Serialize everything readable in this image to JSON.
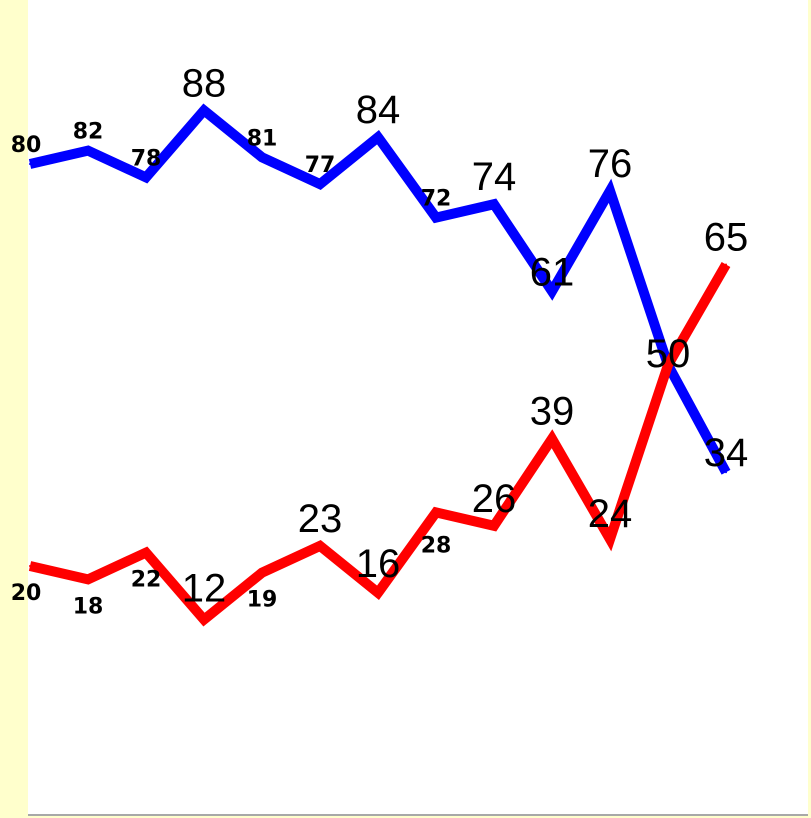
{
  "chart_data": {
    "type": "line",
    "x": [
      1,
      2,
      3,
      4,
      5,
      6,
      7,
      8,
      9,
      10,
      11,
      12,
      13
    ],
    "ylim": [
      0,
      100
    ],
    "grid": false,
    "legend": "none",
    "series": [
      {
        "color": "#0000ff",
        "values": [
          80,
          82,
          78,
          88,
          81,
          77,
          84,
          72,
          74,
          61,
          76,
          50,
          34
        ],
        "labels": [
          "80",
          "82",
          "78",
          "88",
          "81",
          "77",
          "84",
          "72",
          "74",
          "61",
          "76",
          "50",
          "34"
        ],
        "label_style": [
          "small",
          "small",
          "small",
          "large",
          "small",
          "small",
          "large",
          "small",
          "large",
          "large",
          "large",
          "large",
          "large"
        ]
      },
      {
        "color": "#ff0000",
        "values": [
          20,
          18,
          22,
          12,
          19,
          23,
          16,
          28,
          26,
          39,
          24,
          50,
          65
        ],
        "labels": [
          "20",
          "18",
          "22",
          "12",
          "19",
          "23",
          "16",
          "28",
          "26",
          "39",
          "24",
          "",
          "65"
        ],
        "label_style": [
          "small",
          "small",
          "small",
          "large",
          "small",
          "large",
          "large",
          "small",
          "large",
          "large",
          "large",
          "large",
          "large"
        ]
      }
    ]
  },
  "colors": {
    "page_background": "#ffffcc",
    "plot_background": "#ffffff",
    "baseline": "#a8a8a8"
  }
}
